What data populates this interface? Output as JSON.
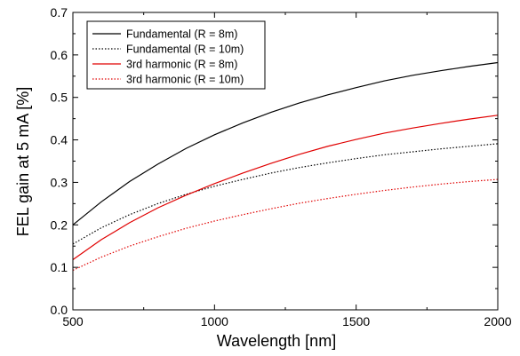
{
  "chart_data": {
    "type": "line",
    "title": "",
    "xlabel": "Wavelength [nm]",
    "ylabel": "FEL gain at 5 mA [%]",
    "xlim": [
      500,
      2000
    ],
    "ylim": [
      0.0,
      0.7
    ],
    "x_ticks": [
      "500",
      "1000",
      "1500",
      "2000"
    ],
    "y_ticks": [
      "0.0",
      "0.1",
      "0.2",
      "0.3",
      "0.4",
      "0.5",
      "0.6",
      "0.7"
    ],
    "grid": false,
    "legend_position": "top-left",
    "x": [
      500,
      600,
      700,
      800,
      900,
      1000,
      1100,
      1200,
      1300,
      1400,
      1500,
      1600,
      1700,
      1800,
      1900,
      2000
    ],
    "series": [
      {
        "name": "Fundamental (R = 8m)",
        "color": "#000000",
        "dash": "solid",
        "values": [
          0.2,
          0.254,
          0.302,
          0.343,
          0.38,
          0.412,
          0.44,
          0.465,
          0.487,
          0.506,
          0.523,
          0.539,
          0.552,
          0.563,
          0.573,
          0.582
        ]
      },
      {
        "name": "Fundamental (R = 10m)",
        "color": "#000000",
        "dash": "dotted",
        "values": [
          0.155,
          0.193,
          0.224,
          0.25,
          0.272,
          0.291,
          0.307,
          0.322,
          0.335,
          0.346,
          0.356,
          0.365,
          0.372,
          0.379,
          0.385,
          0.391
        ]
      },
      {
        "name": "3rd harmonic (R = 8m)",
        "color": "#e00000",
        "dash": "solid",
        "values": [
          0.118,
          0.165,
          0.205,
          0.24,
          0.27,
          0.297,
          0.322,
          0.345,
          0.366,
          0.385,
          0.401,
          0.416,
          0.428,
          0.439,
          0.449,
          0.458
        ]
      },
      {
        "name": "3rd harmonic (R = 10m)",
        "color": "#e00000",
        "dash": "dotted",
        "values": [
          0.093,
          0.124,
          0.15,
          0.172,
          0.192,
          0.209,
          0.224,
          0.238,
          0.251,
          0.262,
          0.272,
          0.281,
          0.289,
          0.296,
          0.302,
          0.307
        ]
      }
    ]
  }
}
